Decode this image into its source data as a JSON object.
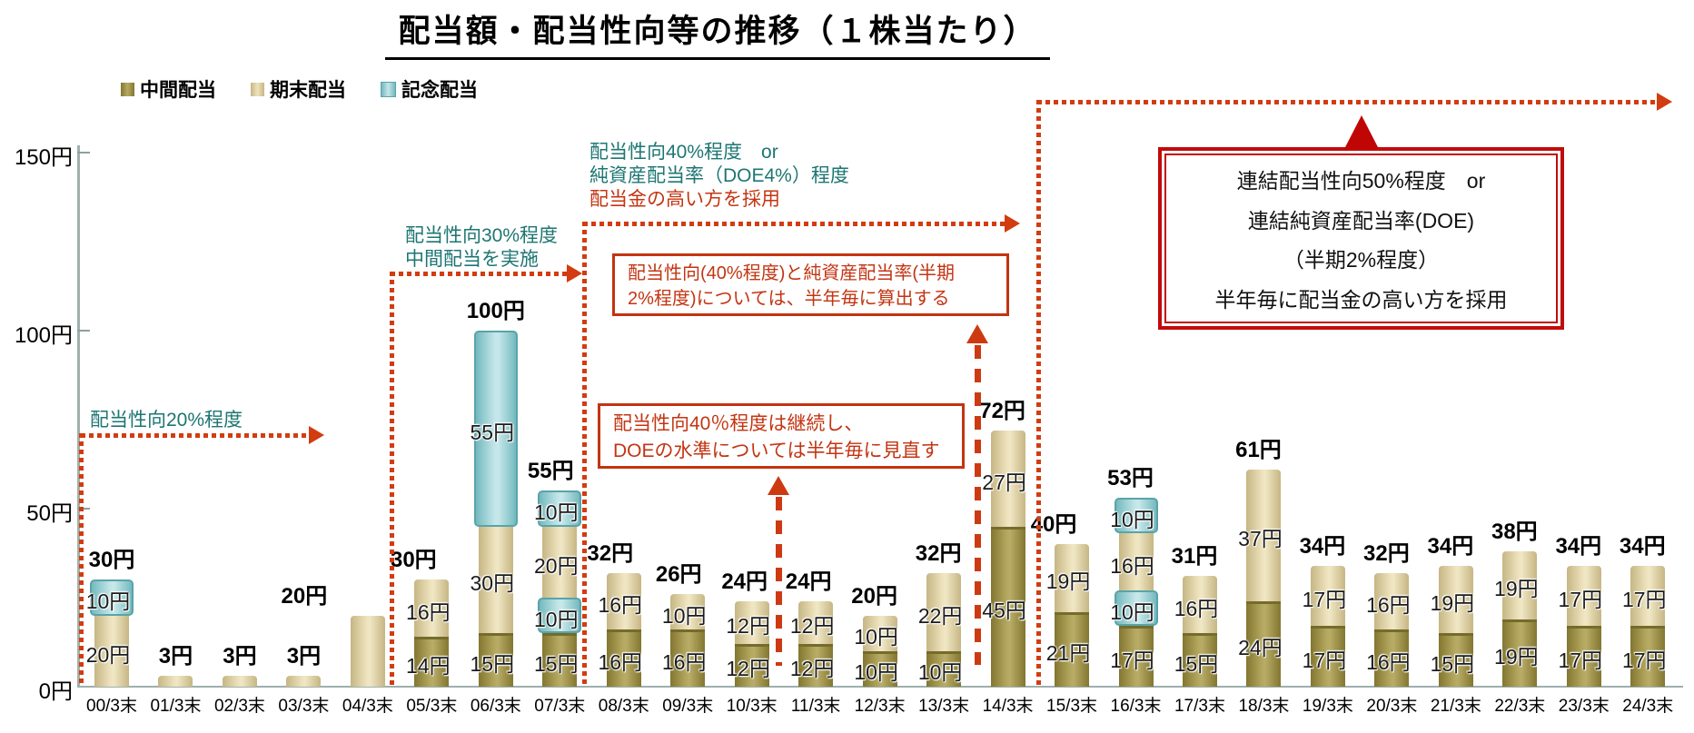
{
  "title": "配当額・配当性向等の推移（１株当たり）",
  "y_axis": {
    "ticks": [
      {
        "value": 0,
        "label": "0円"
      },
      {
        "value": 50,
        "label": "50円"
      },
      {
        "value": 100,
        "label": "100円"
      },
      {
        "value": 150,
        "label": "150円"
      }
    ]
  },
  "chart_data": {
    "type": "bar",
    "stacked": true,
    "unit": "円",
    "ylim": [
      0,
      150
    ],
    "grid": false,
    "legend_position": "top-left",
    "series": [
      {
        "key": "interim",
        "name": "中間配当",
        "color": "#9d9150"
      },
      {
        "key": "final",
        "name": "期末配当",
        "color": "#e2d7a8"
      },
      {
        "key": "commem",
        "name": "記念配当",
        "color": "#9fd2d6"
      }
    ],
    "bars": [
      {
        "category": "00/3末",
        "total_value": 30,
        "total_label": "30円",
        "label_dx": 0,
        "segments": [
          {
            "type": "final",
            "value": 20,
            "label": "20円"
          },
          {
            "type": "commem",
            "value": 10,
            "label": "10円"
          }
        ]
      },
      {
        "category": "01/3末",
        "total_value": 3,
        "total_label": "3円",
        "label_dx": 0,
        "segments": [
          {
            "type": "final",
            "value": 3,
            "label": null
          }
        ]
      },
      {
        "category": "02/3末",
        "total_value": 3,
        "total_label": "3円",
        "label_dx": 0,
        "segments": [
          {
            "type": "final",
            "value": 3,
            "label": null
          }
        ]
      },
      {
        "category": "03/3末",
        "total_value": 3,
        "total_label": "3円",
        "label_dx": 0,
        "segments": [
          {
            "type": "final",
            "value": 3,
            "label": null
          }
        ]
      },
      {
        "category": "04/3末",
        "total_value": 20,
        "total_label": "20円",
        "label_dx": -70,
        "segments": [
          {
            "type": "final",
            "value": 20,
            "label": null
          }
        ]
      },
      {
        "category": "05/3末",
        "total_value": 30,
        "total_label": "30円",
        "label_dx": -20,
        "segments": [
          {
            "type": "interim",
            "value": 14,
            "label": "14円"
          },
          {
            "type": "final",
            "value": 16,
            "label": "16円"
          }
        ]
      },
      {
        "category": "06/3末",
        "total_value": 100,
        "total_label": "100円",
        "label_dx": 0,
        "segments": [
          {
            "type": "interim",
            "value": 15,
            "label": "15円"
          },
          {
            "type": "final",
            "value": 30,
            "label": "30円"
          },
          {
            "type": "commem",
            "value": 55,
            "label": "55円"
          }
        ]
      },
      {
        "category": "07/3末",
        "total_value": 55,
        "total_label": "55円",
        "label_dx": -10,
        "segments": [
          {
            "type": "interim",
            "value": 15,
            "label": "15円"
          },
          {
            "type": "commem",
            "value": 10,
            "label": "10円"
          },
          {
            "type": "final",
            "value": 20,
            "label": "20円"
          },
          {
            "type": "commem",
            "value": 10,
            "label": "10円"
          }
        ]
      },
      {
        "category": "08/3末",
        "total_value": 32,
        "total_label": "32円",
        "label_dx": -15,
        "segments": [
          {
            "type": "interim",
            "value": 16,
            "label": "16円"
          },
          {
            "type": "final",
            "value": 16,
            "label": "16円"
          }
        ]
      },
      {
        "category": "09/3末",
        "total_value": 26,
        "total_label": "26円",
        "label_dx": -10,
        "segments": [
          {
            "type": "interim",
            "value": 16,
            "label": "16円"
          },
          {
            "type": "final",
            "value": 10,
            "label": "10円"
          }
        ]
      },
      {
        "category": "10/3末",
        "total_value": 24,
        "total_label": "24円",
        "label_dx": -8,
        "segments": [
          {
            "type": "interim",
            "value": 12,
            "label": "12円"
          },
          {
            "type": "final",
            "value": 12,
            "label": "12円"
          }
        ]
      },
      {
        "category": "11/3末",
        "total_value": 24,
        "total_label": "24円",
        "label_dx": -8,
        "segments": [
          {
            "type": "interim",
            "value": 12,
            "label": "12円"
          },
          {
            "type": "final",
            "value": 12,
            "label": "12円"
          }
        ]
      },
      {
        "category": "12/3末",
        "total_value": 20,
        "total_label": "20円",
        "label_dx": -6,
        "segments": [
          {
            "type": "interim",
            "value": 10,
            "label": "10円"
          },
          {
            "type": "final",
            "value": 10,
            "label": "10円"
          }
        ]
      },
      {
        "category": "13/3末",
        "total_value": 32,
        "total_label": "32円",
        "label_dx": -6,
        "segments": [
          {
            "type": "interim",
            "value": 10,
            "label": "10円"
          },
          {
            "type": "final",
            "value": 22,
            "label": "22円"
          }
        ]
      },
      {
        "category": "14/3末",
        "total_value": 72,
        "total_label": "72円",
        "label_dx": -6,
        "segments": [
          {
            "type": "interim",
            "value": 45,
            "label": "45円"
          },
          {
            "type": "final",
            "value": 27,
            "label": "27円"
          }
        ]
      },
      {
        "category": "15/3末",
        "total_value": 40,
        "total_label": "40円",
        "label_dx": -20,
        "segments": [
          {
            "type": "interim",
            "value": 21,
            "label": "21円"
          },
          {
            "type": "final",
            "value": 19,
            "label": "19円"
          }
        ]
      },
      {
        "category": "16/3末",
        "total_value": 53,
        "total_label": "53円",
        "label_dx": -6,
        "segments": [
          {
            "type": "interim",
            "value": 17,
            "label": "17円"
          },
          {
            "type": "commem",
            "value": 10,
            "label": "10円"
          },
          {
            "type": "final",
            "value": 16,
            "label": "16円"
          },
          {
            "type": "commem",
            "value": 10,
            "label": "10円"
          }
        ]
      },
      {
        "category": "17/3末",
        "total_value": 31,
        "total_label": "31円",
        "label_dx": -6,
        "segments": [
          {
            "type": "interim",
            "value": 15,
            "label": "15円"
          },
          {
            "type": "final",
            "value": 16,
            "label": "16円"
          }
        ]
      },
      {
        "category": "18/3末",
        "total_value": 61,
        "total_label": "61円",
        "label_dx": -6,
        "segments": [
          {
            "type": "interim",
            "value": 24,
            "label": "24円"
          },
          {
            "type": "final",
            "value": 37,
            "label": "37円"
          }
        ]
      },
      {
        "category": "19/3末",
        "total_value": 34,
        "total_label": "34円",
        "label_dx": -6,
        "segments": [
          {
            "type": "interim",
            "value": 17,
            "label": "17円"
          },
          {
            "type": "final",
            "value": 17,
            "label": "17円"
          }
        ]
      },
      {
        "category": "20/3末",
        "total_value": 32,
        "total_label": "32円",
        "label_dx": -6,
        "segments": [
          {
            "type": "interim",
            "value": 16,
            "label": "16円"
          },
          {
            "type": "final",
            "value": 16,
            "label": "16円"
          }
        ]
      },
      {
        "category": "21/3末",
        "total_value": 34,
        "total_label": "34円",
        "label_dx": -6,
        "segments": [
          {
            "type": "interim",
            "value": 15,
            "label": "15円"
          },
          {
            "type": "final",
            "value": 19,
            "label": "19円"
          }
        ]
      },
      {
        "category": "22/3末",
        "total_value": 38,
        "total_label": "38円",
        "label_dx": -6,
        "segments": [
          {
            "type": "interim",
            "value": 19,
            "label": "19円"
          },
          {
            "type": "final",
            "value": 19,
            "label": "19円"
          }
        ]
      },
      {
        "category": "23/3末",
        "total_value": 34,
        "total_label": "34円",
        "label_dx": -6,
        "segments": [
          {
            "type": "interim",
            "value": 17,
            "label": "17円"
          },
          {
            "type": "final",
            "value": 17,
            "label": "17円"
          }
        ]
      },
      {
        "category": "24/3末",
        "total_value": 34,
        "total_label": "34円",
        "label_dx": -6,
        "segments": [
          {
            "type": "interim",
            "value": 17,
            "label": "17円"
          },
          {
            "type": "final",
            "value": 17,
            "label": "17円"
          }
        ]
      }
    ]
  },
  "annotations": {
    "phase1": {
      "text": "配当性向20%程度"
    },
    "phase2": {
      "line1": "配当性向30%程度",
      "line2": "中間配当を実施"
    },
    "phase3": {
      "line1": "配当性向40%程度　or",
      "line2": "純資産配当率（DOE4%）程度",
      "line3": "配当金の高い方を採用"
    },
    "box1": {
      "line1": "配当性向(40%程度)と純資産配当率(半期",
      "line2": "2%程度)については、半年毎に算出する"
    },
    "box2": {
      "line1": "配当性向40％程度は継続し、",
      "line2": "DOEの水準については半年毎に見直す"
    },
    "box3": {
      "line1": "連結配当性向50%程度　or",
      "line2": "連結純資産配当率(DOE)",
      "line3": "（半期2%程度）",
      "line4": "半年毎に配当金の高い方を採用"
    }
  },
  "colors": {
    "interim": "#9d9150",
    "final": "#e2d7a8",
    "commem": "#9fd2d6",
    "annotation_teal": "#1d7672",
    "annotation_red": "#c33512",
    "dotted_line": "#d23c10",
    "box_border": "#c10b0b",
    "axis": "#9fb0ae"
  }
}
